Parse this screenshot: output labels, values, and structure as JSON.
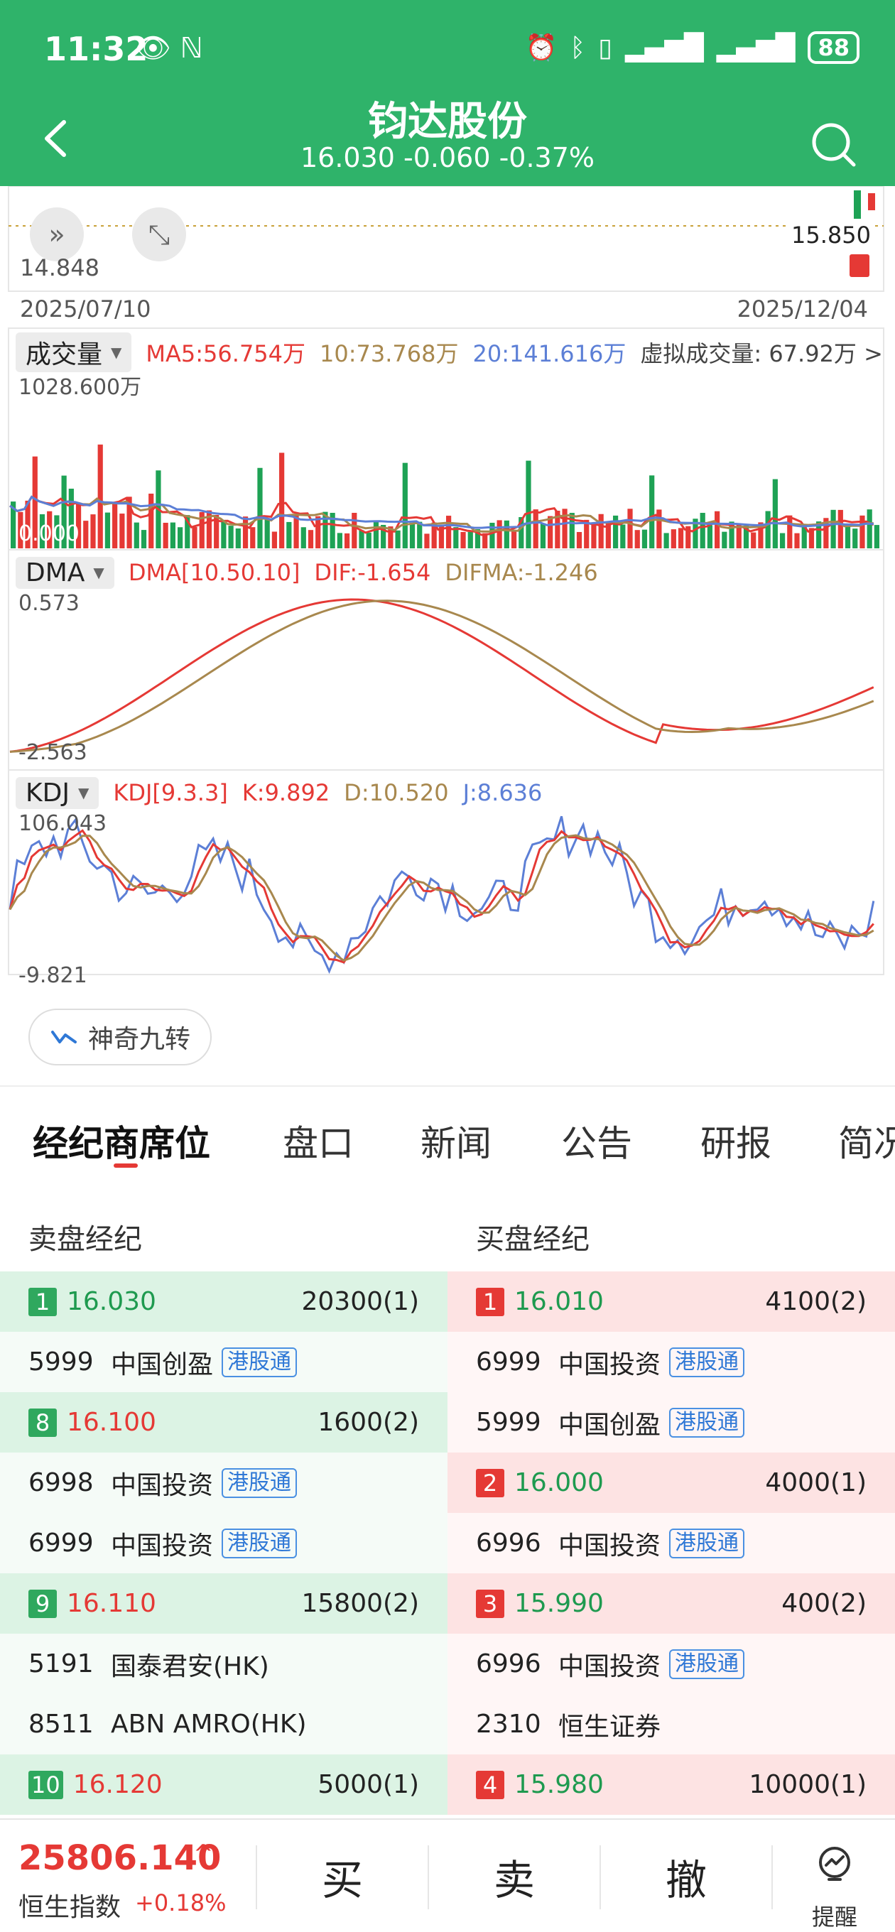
{
  "status": {
    "time": "11:32",
    "left_icons": "👁 ℕ",
    "battery": "88"
  },
  "header": {
    "title": "钧达股份",
    "quote": "16.030 -0.060 -0.37%"
  },
  "chart": {
    "price_low_label": "14.848",
    "price_mark_label": "15.850",
    "date_start": "2025/07/10",
    "date_end": "2025/12/04",
    "volume": {
      "tag": "成交量",
      "ma5": "MA5:56.754万",
      "ma10": "10:73.768万",
      "ma20": "20:141.616万",
      "virtual": "虚拟成交量: 67.92万 >",
      "axis_max": "1028.600万",
      "axis_min": "0.000"
    },
    "dma": {
      "tag": "DMA",
      "params": "DMA[10.50.10]",
      "dif": "DIF:-1.654",
      "difma": "DIFMA:-1.246",
      "axis_max": "0.573",
      "axis_min": "-2.563"
    },
    "kdj": {
      "tag": "KDJ",
      "params": "KDJ[9.3.3]",
      "k": "K:9.892",
      "d": "D:10.520",
      "j": "J:8.636",
      "axis_max": "106.043",
      "axis_min": "-9.821"
    },
    "colors": {
      "red": "#e53935",
      "green": "#1ea255",
      "gold": "#a8884e",
      "blue": "#5c7fd6"
    }
  },
  "magic_button": "神奇九转",
  "tabs": [
    "经纪商席位",
    "盘口",
    "新闻",
    "公告",
    "研报",
    "简况"
  ],
  "queue": {
    "sell_title": "卖盘经纪",
    "buy_title": "买盘经纪",
    "hk_tag": "港股通",
    "sell": [
      {
        "type": "level",
        "num": "1",
        "price": "16.030",
        "vol": "20300(1)",
        "pcolor": "green"
      },
      {
        "type": "broker",
        "code": "5999",
        "name": "中国创盈",
        "hk": true
      },
      {
        "type": "level",
        "num": "8",
        "price": "16.100",
        "vol": "1600(2)",
        "pcolor": "red"
      },
      {
        "type": "broker",
        "code": "6998",
        "name": "中国投资",
        "hk": true
      },
      {
        "type": "broker",
        "code": "6999",
        "name": "中国投资",
        "hk": true
      },
      {
        "type": "level",
        "num": "9",
        "price": "16.110",
        "vol": "15800(2)",
        "pcolor": "red"
      },
      {
        "type": "broker",
        "code": "5191",
        "name": "国泰君安(HK)",
        "hk": false
      },
      {
        "type": "broker",
        "code": "8511",
        "name": "ABN AMRO(HK)",
        "hk": false
      },
      {
        "type": "level",
        "num": "10",
        "price": "16.120",
        "vol": "5000(1)",
        "pcolor": "red"
      }
    ],
    "buy": [
      {
        "type": "level",
        "num": "1",
        "price": "16.010",
        "vol": "4100(2)",
        "pcolor": "green"
      },
      {
        "type": "broker",
        "code": "6999",
        "name": "中国投资",
        "hk": true
      },
      {
        "type": "broker",
        "code": "5999",
        "name": "中国创盈",
        "hk": true
      },
      {
        "type": "level",
        "num": "2",
        "price": "16.000",
        "vol": "4000(1)",
        "pcolor": "green"
      },
      {
        "type": "broker",
        "code": "6996",
        "name": "中国投资",
        "hk": true
      },
      {
        "type": "level",
        "num": "3",
        "price": "15.990",
        "vol": "400(2)",
        "pcolor": "green"
      },
      {
        "type": "broker",
        "code": "6996",
        "name": "中国投资",
        "hk": true
      },
      {
        "type": "broker",
        "code": "2310",
        "name": "恒生证券",
        "hk": false
      },
      {
        "type": "level",
        "num": "4",
        "price": "15.980",
        "vol": "10000(1)",
        "pcolor": "green"
      }
    ]
  },
  "bottom": {
    "index_value": "25806.140",
    "index_name": "恒生指数",
    "index_change": "+0.18%",
    "buy": "买",
    "sell": "卖",
    "cancel": "撤",
    "remind": "提醒"
  }
}
